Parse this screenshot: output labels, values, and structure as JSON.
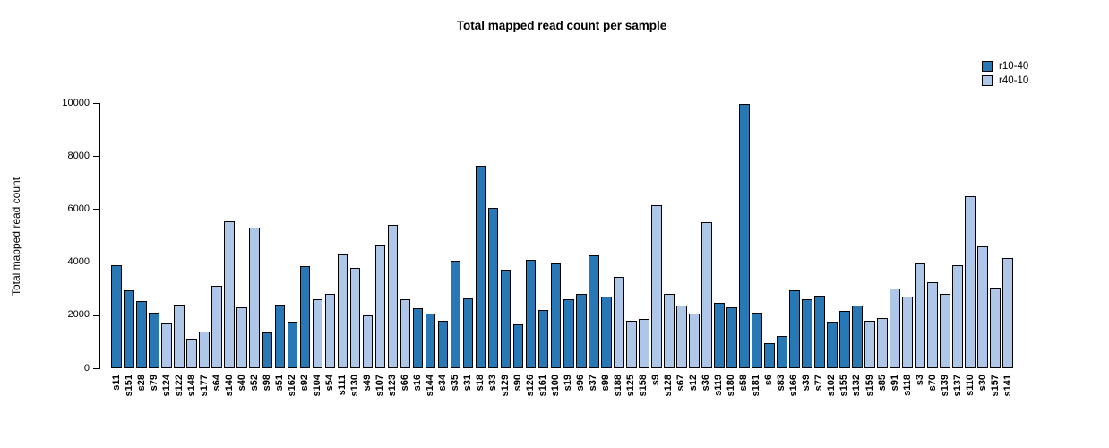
{
  "title": "Total mapped read count per sample",
  "chart_data": {
    "type": "bar",
    "title": "Total mapped read count per sample",
    "xlabel": "",
    "ylabel": "Total mapped read count",
    "ylim": [
      0,
      10000
    ],
    "yticks": [
      0,
      2000,
      4000,
      6000,
      8000,
      10000
    ],
    "grid": false,
    "legend_position": "top-right",
    "series_legend": [
      {
        "name": "r10-40",
        "color": "#2878B5"
      },
      {
        "name": "r40-10",
        "color": "#AEC7E8"
      }
    ],
    "bar_border_color": "#000000",
    "bars": [
      {
        "sample": "s11",
        "value": 3900,
        "series": "r10-40"
      },
      {
        "sample": "s151",
        "value": 2950,
        "series": "r10-40"
      },
      {
        "sample": "s28",
        "value": 2550,
        "series": "r10-40"
      },
      {
        "sample": "s79",
        "value": 2100,
        "series": "r10-40"
      },
      {
        "sample": "s124",
        "value": 1700,
        "series": "r40-10"
      },
      {
        "sample": "s122",
        "value": 2400,
        "series": "r40-10"
      },
      {
        "sample": "s148",
        "value": 1100,
        "series": "r40-10"
      },
      {
        "sample": "s177",
        "value": 1400,
        "series": "r40-10"
      },
      {
        "sample": "s64",
        "value": 3100,
        "series": "r40-10"
      },
      {
        "sample": "s140",
        "value": 5550,
        "series": "r40-10"
      },
      {
        "sample": "s40",
        "value": 2300,
        "series": "r40-10"
      },
      {
        "sample": "s52",
        "value": 5300,
        "series": "r40-10"
      },
      {
        "sample": "s98",
        "value": 1350,
        "series": "r10-40"
      },
      {
        "sample": "s51",
        "value": 2400,
        "series": "r10-40"
      },
      {
        "sample": "s162",
        "value": 1750,
        "series": "r10-40"
      },
      {
        "sample": "s92",
        "value": 3850,
        "series": "r10-40"
      },
      {
        "sample": "s104",
        "value": 2600,
        "series": "r40-10"
      },
      {
        "sample": "s54",
        "value": 2800,
        "series": "r40-10"
      },
      {
        "sample": "s111",
        "value": 4300,
        "series": "r40-10"
      },
      {
        "sample": "s130",
        "value": 3800,
        "series": "r40-10"
      },
      {
        "sample": "s49",
        "value": 2000,
        "series": "r40-10"
      },
      {
        "sample": "s107",
        "value": 4650,
        "series": "r40-10"
      },
      {
        "sample": "s123",
        "value": 5400,
        "series": "r40-10"
      },
      {
        "sample": "s66",
        "value": 2600,
        "series": "r40-10"
      },
      {
        "sample": "s16",
        "value": 2250,
        "series": "r10-40"
      },
      {
        "sample": "s144",
        "value": 2050,
        "series": "r10-40"
      },
      {
        "sample": "s34",
        "value": 1800,
        "series": "r10-40"
      },
      {
        "sample": "s35",
        "value": 4050,
        "series": "r10-40"
      },
      {
        "sample": "s31",
        "value": 2650,
        "series": "r10-40"
      },
      {
        "sample": "s18",
        "value": 7650,
        "series": "r10-40"
      },
      {
        "sample": "s33",
        "value": 6050,
        "series": "r10-40"
      },
      {
        "sample": "s129",
        "value": 3700,
        "series": "r10-40"
      },
      {
        "sample": "s90",
        "value": 1650,
        "series": "r10-40"
      },
      {
        "sample": "s126",
        "value": 4100,
        "series": "r10-40"
      },
      {
        "sample": "s161",
        "value": 2200,
        "series": "r10-40"
      },
      {
        "sample": "s100",
        "value": 3950,
        "series": "r10-40"
      },
      {
        "sample": "s19",
        "value": 2600,
        "series": "r10-40"
      },
      {
        "sample": "s96",
        "value": 2800,
        "series": "r10-40"
      },
      {
        "sample": "s37",
        "value": 4250,
        "series": "r10-40"
      },
      {
        "sample": "s99",
        "value": 2700,
        "series": "r10-40"
      },
      {
        "sample": "s188",
        "value": 3450,
        "series": "r40-10"
      },
      {
        "sample": "s125",
        "value": 1800,
        "series": "r40-10"
      },
      {
        "sample": "s158",
        "value": 1850,
        "series": "r40-10"
      },
      {
        "sample": "s9",
        "value": 6150,
        "series": "r40-10"
      },
      {
        "sample": "s128",
        "value": 2800,
        "series": "r40-10"
      },
      {
        "sample": "s67",
        "value": 2350,
        "series": "r40-10"
      },
      {
        "sample": "s12",
        "value": 2050,
        "series": "r40-10"
      },
      {
        "sample": "s36",
        "value": 5500,
        "series": "r40-10"
      },
      {
        "sample": "s119",
        "value": 2450,
        "series": "r10-40"
      },
      {
        "sample": "s180",
        "value": 2300,
        "series": "r10-40"
      },
      {
        "sample": "s58",
        "value": 9950,
        "series": "r10-40"
      },
      {
        "sample": "s181",
        "value": 2100,
        "series": "r10-40"
      },
      {
        "sample": "s6",
        "value": 950,
        "series": "r10-40"
      },
      {
        "sample": "s83",
        "value": 1200,
        "series": "r10-40"
      },
      {
        "sample": "s166",
        "value": 2950,
        "series": "r10-40"
      },
      {
        "sample": "s39",
        "value": 2600,
        "series": "r10-40"
      },
      {
        "sample": "s77",
        "value": 2750,
        "series": "r10-40"
      },
      {
        "sample": "s102",
        "value": 1750,
        "series": "r10-40"
      },
      {
        "sample": "s155",
        "value": 2150,
        "series": "r10-40"
      },
      {
        "sample": "s132",
        "value": 2350,
        "series": "r10-40"
      },
      {
        "sample": "s159",
        "value": 1800,
        "series": "r40-10"
      },
      {
        "sample": "s85",
        "value": 1900,
        "series": "r40-10"
      },
      {
        "sample": "s91",
        "value": 3000,
        "series": "r40-10"
      },
      {
        "sample": "s118",
        "value": 2700,
        "series": "r40-10"
      },
      {
        "sample": "s3",
        "value": 3950,
        "series": "r40-10"
      },
      {
        "sample": "s70",
        "value": 3250,
        "series": "r40-10"
      },
      {
        "sample": "s139",
        "value": 2800,
        "series": "r40-10"
      },
      {
        "sample": "s137",
        "value": 3900,
        "series": "r40-10"
      },
      {
        "sample": "s110",
        "value": 6500,
        "series": "r40-10"
      },
      {
        "sample": "s30",
        "value": 4600,
        "series": "r40-10"
      },
      {
        "sample": "s157",
        "value": 3050,
        "series": "r40-10"
      },
      {
        "sample": "s141",
        "value": 4150,
        "series": "r40-10"
      }
    ]
  }
}
